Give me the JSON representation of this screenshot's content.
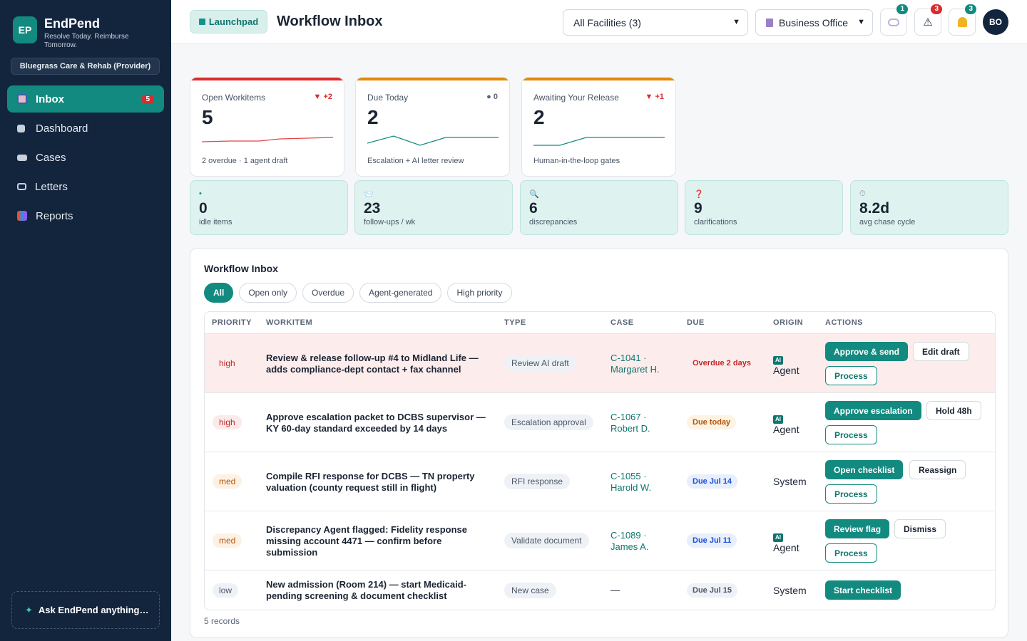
{
  "brand": {
    "logo": "EP",
    "name": "EndPend",
    "tagline": "Resolve Today. Reimburse Tomorrow."
  },
  "org": "Bluegrass Care & Rehab (Provider)",
  "nav": [
    {
      "label": "Inbox",
      "icon": "inbox-icon",
      "badge": "5",
      "active": true
    },
    {
      "label": "Dashboard",
      "icon": "dashboard-icon"
    },
    {
      "label": "Cases",
      "icon": "cases-icon"
    },
    {
      "label": "Letters",
      "icon": "letters-icon"
    },
    {
      "label": "Reports",
      "icon": "reports-icon"
    }
  ],
  "ask": "Ask EndPend anything…",
  "topbar": {
    "launchpad": "Launchpad",
    "title": "Workflow Inbox",
    "facility_select": "All Facilities (3)",
    "role_select": "Business Office",
    "chat_badge": "1",
    "alert_badge": "3",
    "bell_badge": "3",
    "avatar": "BO"
  },
  "kpis": [
    {
      "label": "Open Workitems",
      "value": "5",
      "delta": "▼ +2",
      "sub": "2 overdue · 1 agent draft",
      "color": "#d92d2d"
    },
    {
      "label": "Due Today",
      "value": "2",
      "delta": "● 0",
      "sub": "Escalation + AI letter review",
      "color": "#e3890c"
    },
    {
      "label": "Awaiting Your Release",
      "value": "2",
      "delta": "▼ +1",
      "sub": "Human-in-the-loop gates",
      "color": "#e3890c"
    }
  ],
  "stats": [
    {
      "icon": "•",
      "value": "0",
      "label": "idle items"
    },
    {
      "icon": "📨",
      "value": "23",
      "label": "follow-ups / wk"
    },
    {
      "icon": "🔍",
      "value": "6",
      "label": "discrepancies"
    },
    {
      "icon": "❓",
      "value": "9",
      "label": "clarifications"
    },
    {
      "icon": "⏱",
      "value": "8.2d",
      "label": "avg chase cycle"
    }
  ],
  "inbox": {
    "title": "Workflow Inbox",
    "filters": [
      "All",
      "Open only",
      "Overdue",
      "Agent-generated",
      "High priority"
    ],
    "columns": [
      "PRIORITY",
      "WORKITEM",
      "TYPE",
      "CASE",
      "DUE",
      "ORIGIN",
      "ACTIONS"
    ],
    "rows": [
      {
        "priority": "high",
        "workitem": "Review & release follow-up #4 to Midland Life — adds compliance-dept contact + fax channel",
        "type": "Review AI draft",
        "case": "C-1041 · Margaret H.",
        "due": "Overdue 2 days",
        "ai": "AI",
        "origin": "Agent",
        "primary": "Approve & send",
        "secondary": "Edit draft",
        "process": "Process"
      },
      {
        "priority": "high",
        "workitem": "Approve escalation packet to DCBS supervisor — KY 60-day standard exceeded by 14 days",
        "type": "Escalation approval",
        "case": "C-1067 · Robert D.",
        "due": "Due today",
        "ai": "AI",
        "origin": "Agent",
        "primary": "Approve escalation",
        "secondary": "Hold 48h",
        "process": "Process"
      },
      {
        "priority": "med",
        "workitem": "Compile RFI response for DCBS — TN property valuation (county request still in flight)",
        "type": "RFI response",
        "case": "C-1055 · Harold W.",
        "due": "Due Jul 14",
        "ai": "",
        "origin": "System",
        "primary": "Open checklist",
        "secondary": "Reassign",
        "process": "Process"
      },
      {
        "priority": "med",
        "workitem": "Discrepancy Agent flagged: Fidelity response missing account 4471 — confirm before submission",
        "type": "Validate document",
        "case": "C-1089 · James A.",
        "due": "Due Jul 11",
        "ai": "AI",
        "origin": "Agent",
        "primary": "Review flag",
        "secondary": "Dismiss",
        "process": "Process"
      },
      {
        "priority": "low",
        "workitem": "New admission (Room 214) — start Medicaid-pending screening & document checklist",
        "type": "New case",
        "case": "—",
        "due": "Due Jul 15",
        "ai": "",
        "origin": "System",
        "primary": "Start checklist",
        "secondary": "",
        "process": ""
      }
    ],
    "records": "5 records"
  }
}
